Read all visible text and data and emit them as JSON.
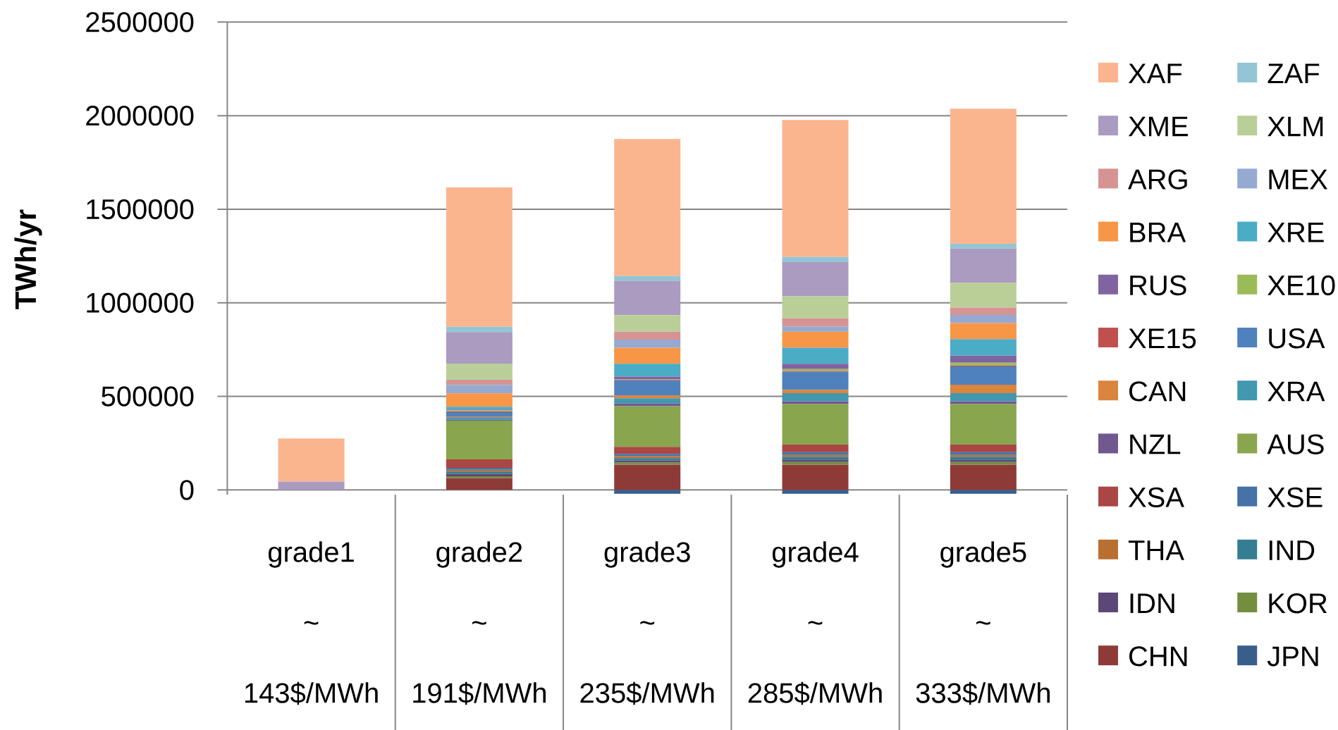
{
  "chart_data": {
    "type": "bar",
    "stacked": true,
    "categories": [
      "grade1 ~ 143$/MWh",
      "grade2 ~ 191$/MWh",
      "grade3 ~ 235$/MWh",
      "grade4 ~ 285$/MWh",
      "grade5 ~ 333$/MWh"
    ],
    "ylabel": "TWh/yr",
    "ylim": [
      -25000,
      2500000
    ],
    "yticks": [
      0,
      500000,
      1000000,
      1500000,
      2000000,
      2500000
    ],
    "grid": "y",
    "legend": "right",
    "series": [
      {
        "name": "JPN",
        "color": "#3A5E8C",
        "values": [
          0,
          0,
          -20000,
          -20000,
          -20000
        ]
      },
      {
        "name": "CHN",
        "color": "#8E3B38",
        "values": [
          0,
          63000,
          134000,
          134000,
          134000
        ]
      },
      {
        "name": "KOR",
        "color": "#748E3F",
        "values": [
          0,
          10000,
          12000,
          15000,
          15000
        ]
      },
      {
        "name": "IDN",
        "color": "#5C4776",
        "values": [
          0,
          13000,
          12000,
          13000,
          13000
        ]
      },
      {
        "name": "IND",
        "color": "#357D91",
        "values": [
          0,
          12000,
          12000,
          15000,
          15000
        ]
      },
      {
        "name": "THA",
        "color": "#B96F32",
        "values": [
          0,
          10000,
          10000,
          10000,
          10000
        ]
      },
      {
        "name": "XSE",
        "color": "#4572A7",
        "values": [
          0,
          10000,
          12000,
          15000,
          15000
        ]
      },
      {
        "name": "XSA",
        "color": "#AA4643",
        "values": [
          0,
          45000,
          38000,
          40000,
          40000
        ]
      },
      {
        "name": "AUS",
        "color": "#89A54E",
        "values": [
          0,
          207000,
          217000,
          217000,
          217000
        ]
      },
      {
        "name": "NZL",
        "color": "#71588F",
        "values": [
          0,
          5000,
          15000,
          15000,
          15000
        ]
      },
      {
        "name": "XRA",
        "color": "#4198AF",
        "values": [
          0,
          10000,
          28000,
          43000,
          43000
        ]
      },
      {
        "name": "CAN",
        "color": "#DB843D",
        "values": [
          0,
          5000,
          15000,
          18000,
          45000
        ]
      },
      {
        "name": "USA",
        "color": "#4F81BD",
        "values": [
          0,
          25000,
          80000,
          96000,
          98000
        ]
      },
      {
        "name": "XE15",
        "color": "#C0504D",
        "values": [
          0,
          5000,
          3000,
          5000,
          5000
        ]
      },
      {
        "name": "XE10",
        "color": "#9BBB59",
        "values": [
          0,
          5000,
          3000,
          10000,
          15000
        ]
      },
      {
        "name": "RUS",
        "color": "#8064A2",
        "values": [
          0,
          5000,
          15000,
          28000,
          38000
        ]
      },
      {
        "name": "XRE",
        "color": "#4BACC6",
        "values": [
          0,
          15000,
          68000,
          86000,
          88000
        ]
      },
      {
        "name": "BRA",
        "color": "#F79646",
        "values": [
          0,
          71000,
          86000,
          86000,
          86000
        ]
      },
      {
        "name": "MEX",
        "color": "#95A9D1",
        "values": [
          0,
          45000,
          43000,
          28000,
          43000
        ]
      },
      {
        "name": "ARG",
        "color": "#D59493",
        "values": [
          0,
          28000,
          43000,
          43000,
          40000
        ]
      },
      {
        "name": "XLM",
        "color": "#BACF98",
        "values": [
          0,
          86000,
          88000,
          118000,
          131000
        ]
      },
      {
        "name": "XME",
        "color": "#AA9BC0",
        "values": [
          45000,
          169000,
          184000,
          182000,
          184000
        ]
      },
      {
        "name": "ZAF",
        "color": "#93C5D5",
        "values": [
          0,
          28000,
          25000,
          28000,
          25000
        ]
      },
      {
        "name": "XAF",
        "color": "#FAB58E",
        "values": [
          230000,
          745000,
          732000,
          732000,
          722000
        ]
      }
    ]
  }
}
